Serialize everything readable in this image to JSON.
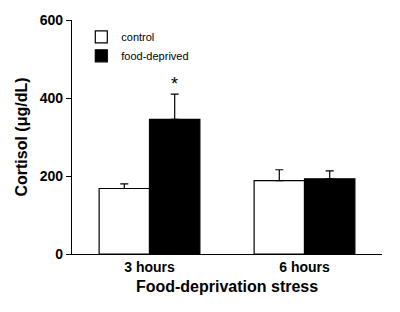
{
  "chart_data": {
    "type": "bar",
    "x_label": "Food-deprivation stress",
    "y_label": "Cortisol (μg/dL)",
    "categories": [
      "3 hours",
      "6 hours"
    ],
    "series": [
      {
        "name": "control",
        "color": "#ffffff",
        "values": [
          168,
          188
        ],
        "errors": [
          12,
          28
        ]
      },
      {
        "name": "food-deprived",
        "color": "#000000",
        "values": [
          345,
          193
        ],
        "errors": [
          65,
          20
        ]
      }
    ],
    "ylim": [
      0,
      600
    ],
    "yticks": [
      0,
      200,
      400,
      600
    ],
    "grid": false,
    "legend": "upper left",
    "annotations": [
      {
        "text": "*",
        "category": "3 hours",
        "series": "food-deprived"
      }
    ]
  }
}
